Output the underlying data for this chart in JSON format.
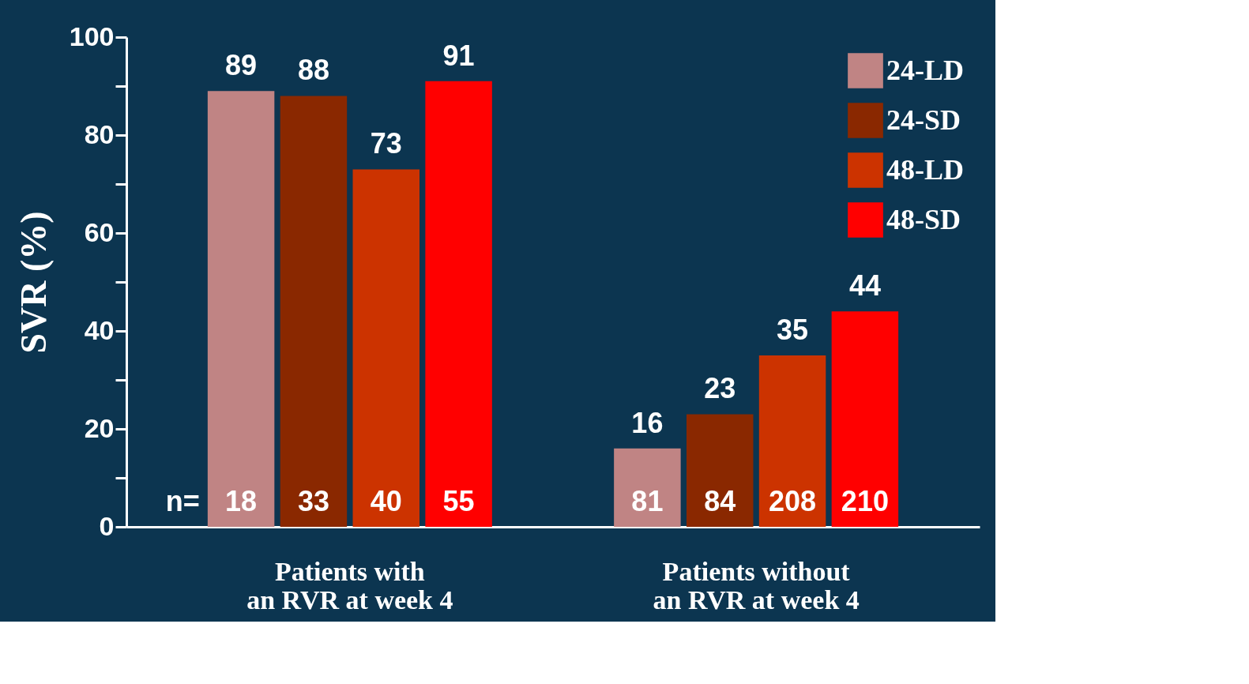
{
  "chart_data": {
    "type": "bar",
    "ylabel": "SVR (%)",
    "categories": [
      "Patients with\nan RVR at week 4",
      "Patients without\nan RVR at week 4"
    ],
    "series": [
      {
        "name": "24-LD",
        "color": "#c08484",
        "values": [
          89,
          16
        ]
      },
      {
        "name": "24-SD",
        "color": "#8a2800",
        "values": [
          88,
          23
        ]
      },
      {
        "name": "48-LD",
        "color": "#cc3300",
        "values": [
          73,
          35
        ]
      },
      {
        "name": "48-SD",
        "color": "#ff0000",
        "values": [
          91,
          44
        ]
      }
    ],
    "ylim": [
      0,
      100
    ],
    "yticks": [
      0,
      {
        "value": 10,
        "label": null
      },
      20,
      {
        "value": 30,
        "label": null
      },
      40,
      {
        "value": 50,
        "label": null
      },
      60,
      {
        "value": 70,
        "label": null
      },
      80,
      {
        "value": 90,
        "label": null
      },
      100
    ],
    "data_labels": true,
    "grid": false,
    "legend": "top right",
    "annotations": [
      "n=",
      "18",
      "81",
      "33",
      "84",
      "40",
      "208",
      "55",
      "210"
    ]
  }
}
